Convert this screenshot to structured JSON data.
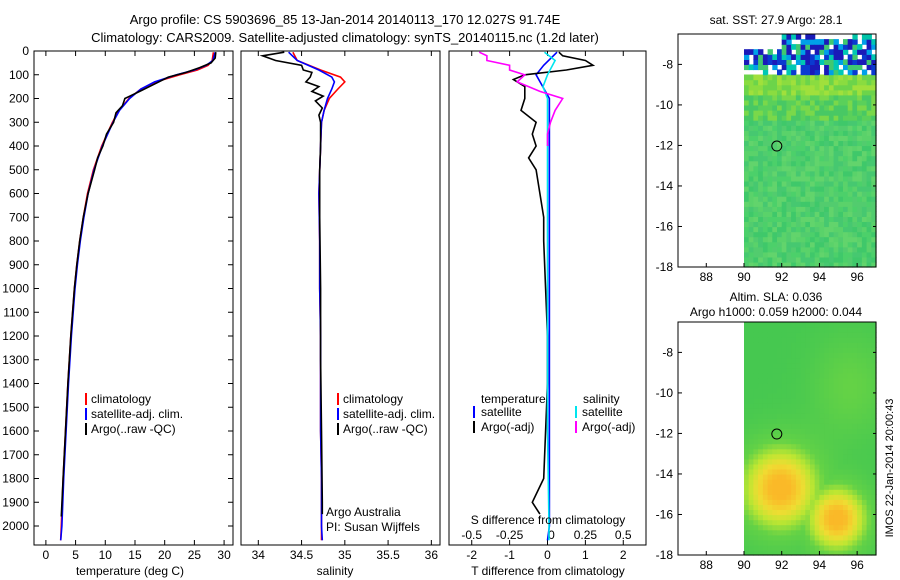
{
  "header": {
    "title_line1": "Argo profile: CS 5903696_85 13-Jan-2014 20140113_170 12.027S 91.74E",
    "title_line2": "Climatology: CARS2009. Satellite-adjusted climatology: synTS_20140115.nc (1.2d later)"
  },
  "colors": {
    "climatology": "#ff0000",
    "satellite": "#0000ff",
    "argo": "#000000",
    "sat_diff": "#00e5ee",
    "argo_diff": "#ff00ff"
  },
  "footer": {
    "credit": "IMOS 22-Jan-2014 20:00:43"
  },
  "chart_data": [
    {
      "id": "temperature",
      "type": "line",
      "xlabel": "temperature (deg C)",
      "ylabel": "",
      "xlim": [
        -2,
        31.5
      ],
      "ylim": [
        2080,
        0
      ],
      "xticks": [
        0,
        5,
        10,
        15,
        20,
        25,
        30
      ],
      "yticks": [
        0,
        100,
        200,
        300,
        400,
        500,
        600,
        700,
        800,
        900,
        1000,
        1100,
        1200,
        1300,
        1400,
        1500,
        1600,
        1700,
        1800,
        1900,
        2000
      ],
      "legend": [
        "climatology",
        "satellite-adj. clim.",
        "Argo(..raw -QC)"
      ],
      "series": [
        {
          "name": "climatology",
          "depth": [
            5,
            40,
            60,
            80,
            100,
            130,
            160,
            200,
            250,
            300,
            350,
            400,
            500,
            600,
            700,
            800,
            900,
            1000,
            1200,
            1400,
            1600,
            1800,
            2000,
            2060
          ],
          "values": [
            28.2,
            28.0,
            27.3,
            25.5,
            22.5,
            18.5,
            16.0,
            14.0,
            12.3,
            11.2,
            10.3,
            9.4,
            8.0,
            7.0,
            6.3,
            5.7,
            5.2,
            4.8,
            4.2,
            3.7,
            3.3,
            2.9,
            2.6,
            2.5
          ]
        },
        {
          "name": "satellite-adj. clim.",
          "depth": [
            5,
            40,
            60,
            80,
            100,
            130,
            160,
            200,
            250,
            300,
            350,
            400,
            500,
            600,
            700,
            800,
            900,
            1000,
            1200,
            1400,
            1600,
            1800,
            2000,
            2060
          ],
          "values": [
            28.5,
            28.1,
            27.0,
            25.0,
            22.0,
            18.3,
            16.0,
            14.1,
            12.4,
            11.3,
            10.4,
            9.5,
            8.1,
            7.1,
            6.4,
            5.8,
            5.3,
            4.9,
            4.3,
            3.8,
            3.4,
            3.0,
            2.7,
            2.5
          ]
        },
        {
          "name": "Argo(..raw -QC)",
          "depth": [
            5,
            30,
            50,
            70,
            90,
            110,
            140,
            170,
            200,
            230,
            260,
            300,
            350,
            400,
            450,
            500,
            600,
            700,
            800,
            900,
            1000,
            1200,
            1400,
            1600,
            1800,
            1960
          ],
          "values": [
            28.6,
            28.5,
            27.8,
            25.9,
            23.6,
            20.6,
            18.2,
            15.8,
            13.3,
            12.9,
            11.8,
            11.4,
            10.2,
            9.6,
            8.7,
            8.2,
            7.1,
            6.3,
            5.7,
            5.2,
            4.8,
            4.2,
            3.7,
            3.3,
            2.9,
            2.6
          ]
        }
      ]
    },
    {
      "id": "salinity",
      "type": "line",
      "xlabel": "salinity",
      "xlim": [
        33.8,
        36.1
      ],
      "ylim": [
        2080,
        0
      ],
      "xticks": [
        34,
        34.5,
        35,
        35.5,
        36
      ],
      "legend": [
        "climatology",
        "satellite-adj. clim.",
        "Argo(..raw -QC)"
      ],
      "annotation": [
        "Argo Australia",
        "PI: Susan Wijffels"
      ],
      "series": [
        {
          "name": "climatology",
          "depth": [
            5,
            40,
            80,
            110,
            130,
            160,
            200,
            250,
            300,
            400,
            600,
            800,
            1000,
            1200,
            1400,
            1600,
            1800,
            2000,
            2060
          ],
          "values": [
            34.4,
            34.45,
            34.72,
            34.95,
            35.0,
            34.92,
            34.82,
            34.76,
            34.73,
            34.72,
            34.7,
            34.71,
            34.71,
            34.72,
            34.72,
            34.72,
            34.73,
            34.73,
            34.73
          ]
        },
        {
          "name": "satellite-adj. clim.",
          "depth": [
            5,
            40,
            80,
            110,
            130,
            160,
            200,
            250,
            300,
            400,
            600,
            800,
            1000,
            1200,
            1400,
            1600,
            1800,
            2000,
            2060
          ],
          "values": [
            34.35,
            34.45,
            34.7,
            34.85,
            34.88,
            34.85,
            34.8,
            34.76,
            34.73,
            34.72,
            34.7,
            34.71,
            34.71,
            34.72,
            34.72,
            34.72,
            34.73,
            34.73,
            34.74
          ]
        },
        {
          "name": "Argo(..raw -QC)",
          "depth": [
            5,
            20,
            40,
            60,
            80,
            90,
            110,
            130,
            150,
            170,
            190,
            210,
            240,
            270,
            300,
            350,
            400,
            500,
            700,
            1000,
            1300,
            1600,
            1900,
            1950
          ],
          "values": [
            34.3,
            34.05,
            34.2,
            34.5,
            34.52,
            34.62,
            34.6,
            34.55,
            34.7,
            34.62,
            34.75,
            34.66,
            34.74,
            34.7,
            34.72,
            34.72,
            34.72,
            34.71,
            34.71,
            34.72,
            34.72,
            34.73,
            34.74,
            34.74
          ]
        }
      ]
    },
    {
      "id": "differences",
      "type": "line",
      "xlabel": "T difference from climatology",
      "xlabel_top": "S difference from climatology",
      "xlim": [
        -2.6,
        2.6
      ],
      "ylim": [
        2080,
        0
      ],
      "xticks": [
        -2,
        -1,
        0,
        1,
        2
      ],
      "xticks_s": [
        -0.5,
        -0.25,
        0,
        0.25,
        0.5
      ],
      "legend_titles": [
        "temperature",
        "salinity"
      ],
      "legend": [
        "satellite",
        "Argo(-adj)",
        "satellite",
        "Argo(-adj)"
      ],
      "series": [
        {
          "name": "T satellite",
          "depth": [
            5,
            60,
            100,
            200,
            400,
            800,
            1200,
            1600,
            2000,
            2060
          ],
          "values": [
            0.25,
            -0.1,
            -0.3,
            0.05,
            0.05,
            0.05,
            0.05,
            0.05,
            0.05,
            0.0
          ]
        },
        {
          "name": "T Argo(-adj)",
          "depth": [
            5,
            20,
            40,
            60,
            80,
            100,
            120,
            150,
            200,
            250,
            300,
            350,
            400,
            450,
            500,
            600,
            700,
            800,
            1000,
            1200,
            1400,
            1600,
            1800,
            1900,
            1950
          ],
          "values": [
            0.3,
            0.4,
            1.0,
            1.2,
            0.5,
            -0.6,
            -0.9,
            -0.6,
            -0.6,
            -0.7,
            -0.3,
            -0.4,
            -0.3,
            -0.5,
            -0.3,
            -0.2,
            -0.1,
            -0.1,
            -0.05,
            0.0,
            0.0,
            -0.05,
            -0.1,
            -0.4,
            -0.2
          ]
        },
        {
          "name": "S satellite",
          "depth": [
            5,
            40,
            100,
            150,
            200,
            400,
            800,
            1200,
            1600,
            2000,
            2060
          ],
          "values": [
            -0.02,
            0.05,
            0.0,
            -0.03,
            0.0,
            0.0,
            0.0,
            0.0,
            0.0,
            0.01,
            0.01
          ]
        },
        {
          "name": "S Argo(-adj)",
          "depth": [
            5,
            20,
            40,
            60,
            80,
            100,
            130,
            170,
            200,
            250,
            300,
            350,
            400
          ],
          "values": [
            -0.45,
            -0.4,
            -0.4,
            -0.25,
            -0.25,
            -0.15,
            -0.2,
            -0.05,
            0.1,
            0.05,
            0.02,
            0.0,
            0.0
          ]
        }
      ]
    },
    {
      "id": "sst-map",
      "type": "heatmap",
      "title": "sat. SST: 27.9 Argo: 28.1",
      "xlim": [
        86.5,
        97
      ],
      "ylim": [
        -18,
        -6.5
      ],
      "xticks": [
        88,
        90,
        92,
        94,
        96
      ],
      "yticks": [
        -8,
        -10,
        -12,
        -14,
        -16,
        -18
      ],
      "marker": {
        "lon": 91.74,
        "lat": -12.03
      }
    },
    {
      "id": "sla-map",
      "type": "heatmap",
      "title_line1": "Altim. SLA: 0.036",
      "title_line2": "Argo h1000: 0.059 h2000: 0.044",
      "xlim": [
        86.5,
        97
      ],
      "ylim": [
        -18,
        -6.5
      ],
      "xticks": [
        88,
        90,
        92,
        94,
        96
      ],
      "yticks": [
        -8,
        -10,
        -12,
        -14,
        -16,
        -18
      ],
      "marker": {
        "lon": 91.74,
        "lat": -12.03
      }
    }
  ]
}
